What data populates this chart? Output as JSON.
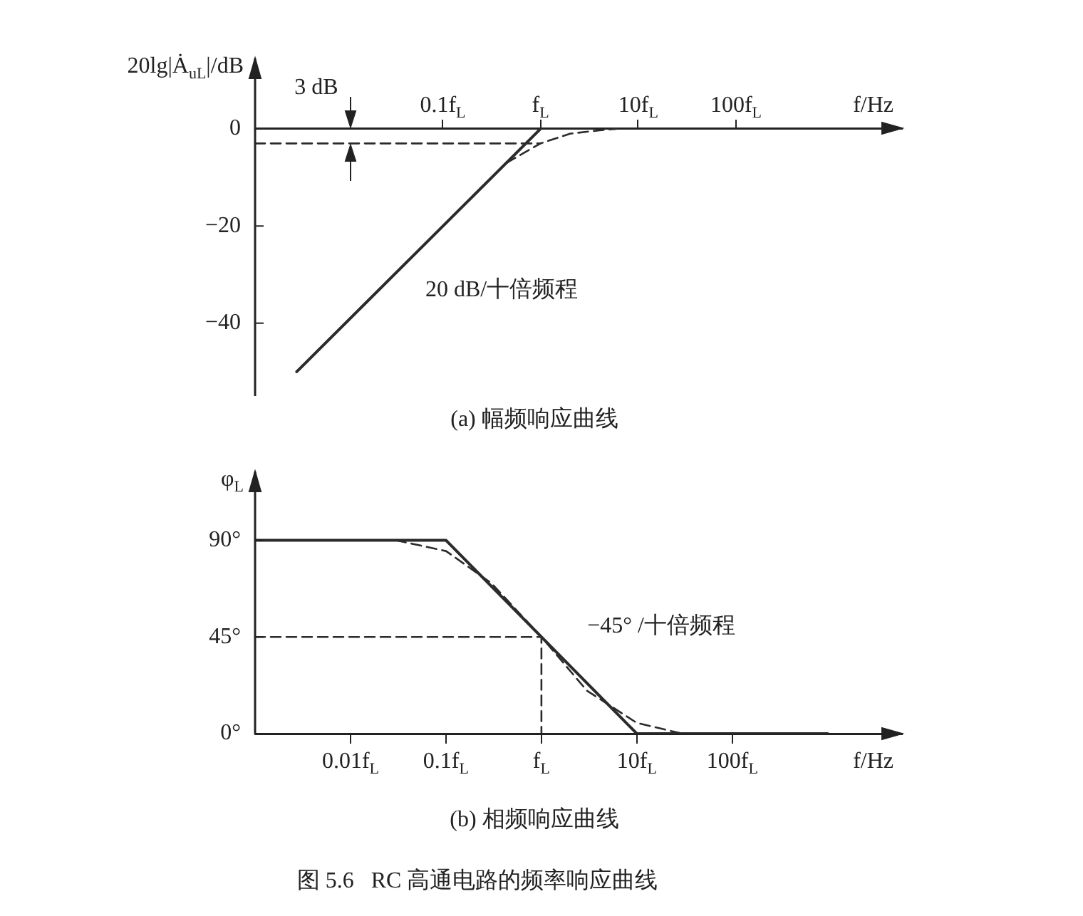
{
  "chart_data": [
    {
      "type": "line",
      "title": "(a) 幅频响应曲线",
      "xlabel": "f/Hz",
      "ylabel": "20lg|Ȧ$_{uL}$|/dB",
      "log": "x",
      "grid": false,
      "legend": false,
      "marker": "none",
      "xlim": [
        0.0012,
        5000
      ],
      "ylim": [
        -55,
        14.5
      ],
      "xticks": [
        {
          "value": 0.1,
          "label": "0.1f$_{L}$"
        },
        {
          "value": 1,
          "label": "f$_{L}$"
        },
        {
          "value": 10,
          "label": "10f$_{L}$"
        },
        {
          "value": 100,
          "label": "100f$_{L}$"
        }
      ],
      "yticks": [
        0,
        {
          "value": -20,
          "label": "−20"
        },
        {
          "value": -40,
          "label": "−40"
        }
      ],
      "series": [
        {
          "color": "#2b2b2b",
          "line_style": "solid",
          "x": [
            0.0032,
            1
          ],
          "values": [
            -50,
            0
          ]
        },
        {
          "color": "#2b2b2b",
          "line_style": "dashed",
          "x": [
            0.45,
            1,
            2,
            4,
            6
          ],
          "values": [
            -7,
            -3,
            -1,
            -0.3,
            0
          ]
        },
        {
          "color": "#2b2b2b",
          "line_style": "dashed",
          "x": [
            0.0012,
            1
          ],
          "values": [
            -3,
            -3
          ]
        }
      ],
      "annotations": [
        "3 dB",
        "20 dB/十倍频程"
      ]
    },
    {
      "type": "line",
      "title": "(b) 相频响应曲线",
      "xlabel": "f/Hz",
      "ylabel": "φ$_{L}$",
      "log": "x",
      "grid": false,
      "legend": false,
      "marker": "none",
      "xlim": [
        0.001,
        6000
      ],
      "ylim": [
        0,
        122
      ],
      "xticks": [
        {
          "value": 0.01,
          "label": "0.01f$_{L}$"
        },
        {
          "value": 0.1,
          "label": "0.1f$_{L}$"
        },
        {
          "value": 1,
          "label": "f$_{L}$"
        },
        {
          "value": 10,
          "label": "10f$_{L}$"
        },
        {
          "value": 100,
          "label": "100f$_{L}$"
        }
      ],
      "yticks": [
        {
          "value": 0,
          "label": "0°"
        },
        {
          "value": 45,
          "label": "45°"
        },
        {
          "value": 90,
          "label": "90°"
        }
      ],
      "series": [
        {
          "color": "#2b2b2b",
          "line_style": "solid",
          "x": [
            0.001,
            0.1,
            10,
            1000
          ],
          "values": [
            90,
            90,
            0,
            0
          ]
        },
        {
          "color": "#2b2b2b",
          "line_style": "dashed",
          "x": [
            0.03,
            0.1,
            0.3,
            1,
            3,
            10,
            30
          ],
          "values": [
            90,
            85,
            70,
            45,
            20,
            5,
            0
          ]
        },
        {
          "color": "#2b2b2b",
          "line_style": "dashed",
          "x": [
            0.001,
            1,
            1
          ],
          "values": [
            45,
            45,
            0
          ]
        }
      ],
      "annotations": [
        "−45° /十倍频程",
        "图 5.6   RC 高通电路的频率响应曲线"
      ]
    }
  ]
}
